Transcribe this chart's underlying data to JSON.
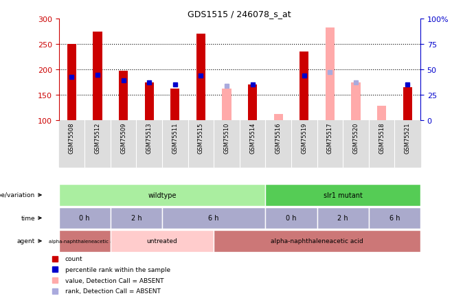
{
  "title": "GDS1515 / 246078_s_at",
  "samples": [
    "GSM75508",
    "GSM75512",
    "GSM75509",
    "GSM75513",
    "GSM75511",
    "GSM75515",
    "GSM75510",
    "GSM75514",
    "GSM75516",
    "GSM75519",
    "GSM75517",
    "GSM75520",
    "GSM75518",
    "GSM75521"
  ],
  "count_values": [
    250,
    275,
    197,
    175,
    163,
    270,
    null,
    170,
    null,
    235,
    null,
    null,
    null,
    165
  ],
  "count_absent": [
    null,
    null,
    null,
    null,
    null,
    null,
    163,
    null,
    113,
    null,
    283,
    175,
    128,
    null
  ],
  "percentile_present": [
    185,
    190,
    178,
    175,
    170,
    188,
    null,
    170,
    null,
    188,
    null,
    null,
    null,
    170
  ],
  "percentile_absent": [
    null,
    null,
    null,
    null,
    null,
    null,
    168,
    null,
    null,
    null,
    195,
    175,
    null,
    null
  ],
  "ylim_left": [
    100,
    300
  ],
  "ylim_right": [
    0,
    100
  ],
  "left_yticks": [
    100,
    150,
    200,
    250,
    300
  ],
  "right_yticks": [
    0,
    25,
    50,
    75,
    100
  ],
  "count_color": "#cc0000",
  "absent_value_color": "#ffaaaa",
  "percentile_color": "#0000cc",
  "absent_rank_color": "#aaaadd",
  "genotype_cells": [
    {
      "label": "wildtype",
      "start": 0,
      "end": 7,
      "color": "#aaeea a"
    },
    {
      "label": "slr1 mutant",
      "start": 8,
      "end": 13,
      "color": "#55cc55"
    }
  ],
  "time_cells": [
    {
      "label": "0 h",
      "start": 0,
      "end": 1
    },
    {
      "label": "2 h",
      "start": 2,
      "end": 3
    },
    {
      "label": "6 h",
      "start": 4,
      "end": 7
    },
    {
      "label": "0 h",
      "start": 8,
      "end": 9
    },
    {
      "label": "2 h",
      "start": 10,
      "end": 11
    },
    {
      "label": "6 h",
      "start": 12,
      "end": 13
    }
  ],
  "time_color": "#aaaacc",
  "agent_cells": [
    {
      "label": "alpha-naphthaleneacetic acid",
      "start": 0,
      "end": 1,
      "color": "#cc7777"
    },
    {
      "label": "untreated",
      "start": 2,
      "end": 5,
      "color": "#ffcccc"
    },
    {
      "label": "alpha-naphthaleneacetic acid",
      "start": 6,
      "end": 13,
      "color": "#cc7777"
    }
  ],
  "legend_items": [
    {
      "color": "#cc0000",
      "label": "count"
    },
    {
      "color": "#0000cc",
      "label": "percentile rank within the sample"
    },
    {
      "color": "#ffaaaa",
      "label": "value, Detection Call = ABSENT"
    },
    {
      "color": "#aaaadd",
      "label": "rank, Detection Call = ABSENT"
    }
  ],
  "wildtype_color": "#aaeea0",
  "mutant_color": "#55cc55"
}
